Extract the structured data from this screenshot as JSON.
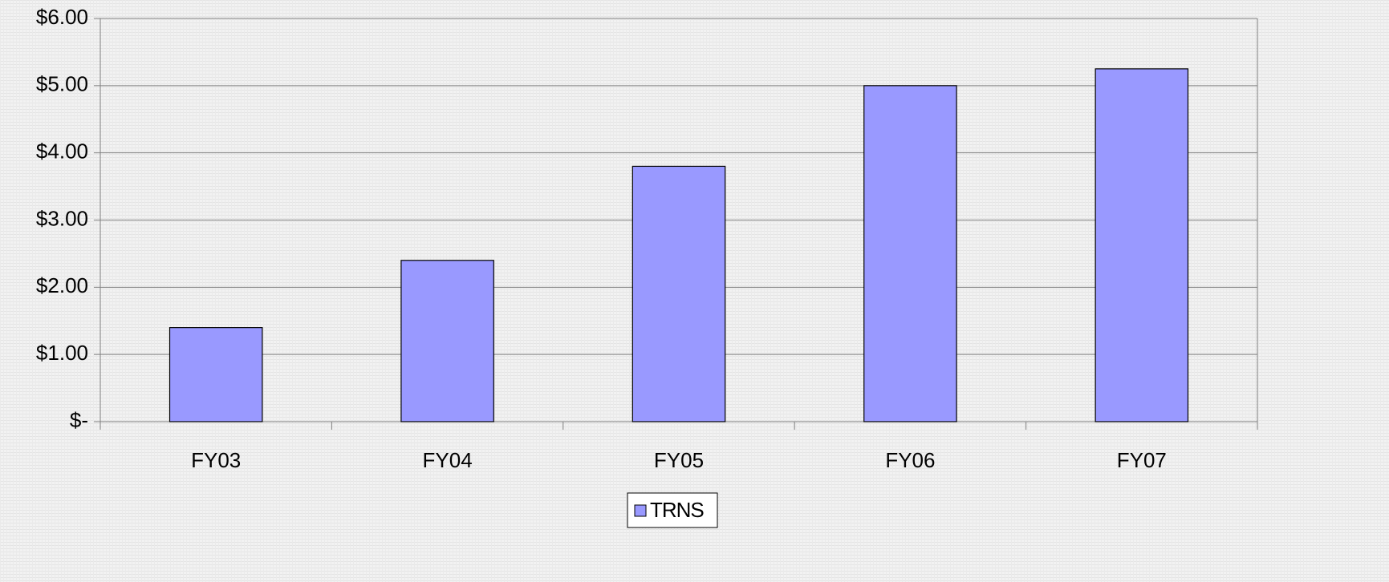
{
  "chart_data": {
    "type": "bar",
    "categories": [
      "FY03",
      "FY04",
      "FY05",
      "FY06",
      "FY07"
    ],
    "series": [
      {
        "name": "TRNS",
        "color": "#9999ff",
        "values": [
          1.4,
          2.4,
          3.8,
          5.0,
          5.25
        ]
      }
    ],
    "ylim": [
      0,
      6
    ],
    "yticks": [
      {
        "value": 0,
        "label": "$-"
      },
      {
        "value": 1,
        "label": "$1.00"
      },
      {
        "value": 2,
        "label": "$2.00"
      },
      {
        "value": 3,
        "label": "$3.00"
      },
      {
        "value": 4,
        "label": "$4.00"
      },
      {
        "value": 5,
        "label": "$5.00"
      },
      {
        "value": 6,
        "label": "$6.00"
      }
    ],
    "grid": true,
    "legend": "bottom"
  }
}
